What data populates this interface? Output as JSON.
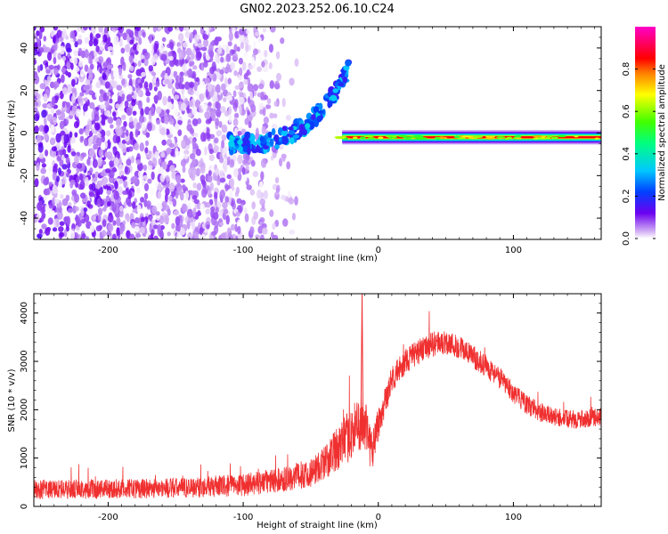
{
  "title": "GN02.2023.252.06.10.C24",
  "chart_data": [
    {
      "type": "heatmap",
      "xlabel": "Height of straight line (km)",
      "ylabel": "Frequency (Hz)",
      "xlim": [
        -255,
        165
      ],
      "ylim": [
        -50,
        50
      ],
      "xticks": [
        -200,
        -100,
        0,
        100
      ],
      "xtick_labels": [
        "-200",
        "-100",
        "0",
        "100"
      ],
      "yticks": [
        -40,
        -20,
        0,
        20,
        40
      ],
      "ytick_labels": [
        "-40",
        "-20",
        "0",
        "20",
        "40"
      ],
      "grid": false,
      "colorbar": {
        "label": "Normalized spectral amplitude",
        "range": [
          0,
          1
        ],
        "ticks": [
          0.0,
          0.2,
          0.4,
          0.6,
          0.8
        ],
        "tick_labels": [
          "0.0",
          "0.2",
          "0.4",
          "0.6",
          "0.8"
        ],
        "colormap": "hsv-like (white, purple, blue, cyan, green, yellow, red, magenta)"
      },
      "features": [
        {
          "kind": "diffuse noise",
          "x_range": [
            -255,
            -45
          ],
          "freq_range": [
            -50,
            50
          ],
          "amplitude": [
            0.0,
            0.15
          ]
        },
        {
          "kind": "rising chirp",
          "x_range": [
            -110,
            -22
          ],
          "freq_start": -5,
          "freq_end": 30,
          "amplitude": [
            0.15,
            0.35
          ]
        },
        {
          "kind": "steady tone",
          "x_range": [
            -32,
            165
          ],
          "freq": -2,
          "amplitude": [
            0.85,
            0.95
          ]
        }
      ]
    },
    {
      "type": "line",
      "xlabel": "Height of straight line (km)",
      "ylabel": "SNR (10 * v/v)",
      "xlim": [
        -255,
        165
      ],
      "ylim": [
        0,
        4400
      ],
      "xticks": [
        -200,
        -100,
        0,
        100
      ],
      "xtick_labels": [
        "-200",
        "-100",
        "0",
        "100"
      ],
      "yticks": [
        0,
        1000,
        2000,
        3000,
        4000
      ],
      "ytick_labels": [
        "0",
        "1000",
        "2000",
        "3000",
        "4000"
      ],
      "grid": false,
      "color": "#f03030",
      "envelope": {
        "x": [
          -255,
          -200,
          -150,
          -100,
          -70,
          -50,
          -40,
          -30,
          -20,
          -12,
          -5,
          0,
          5,
          10,
          20,
          30,
          40,
          50,
          60,
          70,
          80,
          90,
          100,
          110,
          120,
          130,
          140,
          150,
          165
        ],
        "mean": [
          350,
          360,
          380,
          440,
          560,
          700,
          900,
          1200,
          1500,
          1800,
          1200,
          1700,
          2200,
          2600,
          3000,
          3200,
          3350,
          3400,
          3300,
          3100,
          2900,
          2650,
          2350,
          2100,
          1950,
          1850,
          1800,
          1800,
          1850
        ],
        "noise": [
          200,
          200,
          210,
          230,
          260,
          300,
          360,
          450,
          550,
          600,
          500,
          380,
          320,
          280,
          270,
          260,
          260,
          260,
          250,
          240,
          230,
          220,
          210,
          200,
          200,
          190,
          190,
          190,
          190
        ]
      },
      "peaks": [
        {
          "x": -12,
          "y": 4400
        }
      ]
    }
  ]
}
